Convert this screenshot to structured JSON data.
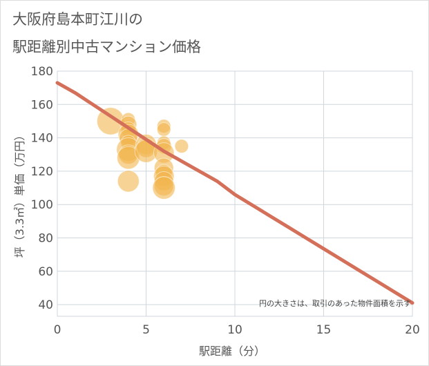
{
  "title_line1": "大阪府島本町江川の",
  "title_line2": "駅距離別中古マンション価格",
  "chart_data": {
    "type": "scatter",
    "xlabel": "駅距離（分）",
    "ylabel": "坪（3.3㎡）単価（万円）",
    "xlim": [
      0,
      20
    ],
    "ylim": [
      33,
      180
    ],
    "xticks": [
      0,
      5,
      10,
      15,
      20
    ],
    "yticks": [
      40,
      60,
      80,
      100,
      120,
      140,
      160,
      180
    ],
    "grid": true,
    "note": "円の大きさは、取引のあった物件面積を示す",
    "colors": {
      "bubble": "#f2b54e",
      "trend": "#d4705a",
      "grid": "#cfd6dc"
    },
    "bubbles": [
      {
        "x": 3,
        "y": 150,
        "size": 80
      },
      {
        "x": 4,
        "y": 151,
        "size": 20
      },
      {
        "x": 4,
        "y": 148,
        "size": 30
      },
      {
        "x": 4,
        "y": 145,
        "size": 25
      },
      {
        "x": 4,
        "y": 142,
        "size": 45
      },
      {
        "x": 4,
        "y": 140,
        "size": 35
      },
      {
        "x": 4,
        "y": 137,
        "size": 25
      },
      {
        "x": 4,
        "y": 133,
        "size": 60
      },
      {
        "x": 4,
        "y": 130,
        "size": 40
      },
      {
        "x": 4,
        "y": 128,
        "size": 55
      },
      {
        "x": 4,
        "y": 114,
        "size": 50
      },
      {
        "x": 5,
        "y": 136,
        "size": 45
      },
      {
        "x": 5,
        "y": 134,
        "size": 40
      },
      {
        "x": 5,
        "y": 132,
        "size": 55
      },
      {
        "x": 6,
        "y": 147,
        "size": 20
      },
      {
        "x": 6,
        "y": 145,
        "size": 20
      },
      {
        "x": 6,
        "y": 137,
        "size": 20
      },
      {
        "x": 6,
        "y": 135,
        "size": 25
      },
      {
        "x": 6,
        "y": 131,
        "size": 45
      },
      {
        "x": 6,
        "y": 122,
        "size": 40
      },
      {
        "x": 6,
        "y": 119,
        "size": 30
      },
      {
        "x": 6,
        "y": 117,
        "size": 45
      },
      {
        "x": 6,
        "y": 114,
        "size": 40
      },
      {
        "x": 6,
        "y": 111,
        "size": 40
      },
      {
        "x": 6,
        "y": 110,
        "size": 55
      },
      {
        "x": 7,
        "y": 135,
        "size": 20
      }
    ],
    "trend": {
      "x": [
        0,
        1,
        2,
        3,
        4,
        5,
        6,
        7,
        8,
        9,
        10,
        11,
        12,
        13,
        14,
        15,
        16,
        17,
        18,
        19,
        20
      ],
      "y": [
        173,
        167,
        160,
        153,
        146,
        139,
        132,
        126,
        120,
        114,
        106,
        99.5,
        93,
        86.5,
        80,
        73.5,
        67,
        60.5,
        54,
        47.5,
        41
      ]
    }
  }
}
